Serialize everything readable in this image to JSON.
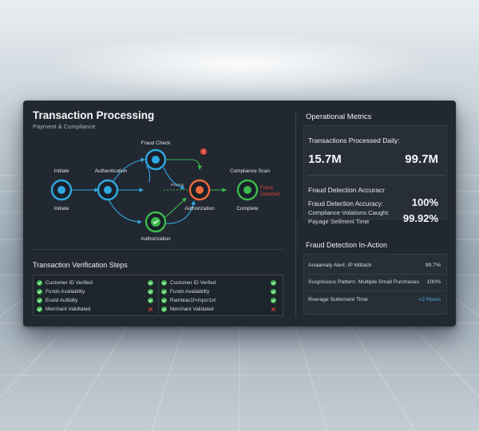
{
  "dashboard": {
    "title": "Transaction Processing",
    "subtitle": "Payment & Compliance"
  },
  "flow": {
    "nodes": {
      "initiate": {
        "label_top": "Initiate",
        "label_bottom": "Initiate"
      },
      "authentication": {
        "label": "Authentication"
      },
      "fraud_check": {
        "label": "Fraud Check"
      },
      "routing": {
        "label": "Routing"
      },
      "authorization_right": {
        "label": "Authorization"
      },
      "authorization_bottom": {
        "label": "Authorization"
      },
      "compliance": {
        "label_top": "Compliance Scan",
        "label_bottom": "Complete"
      }
    },
    "fraud_detected_label": "Fraud Detected",
    "colors": {
      "blue": "#2fa8e0",
      "orange": "#ee6a3c",
      "green": "#3cba4c",
      "red": "#e0473d"
    }
  },
  "verification": {
    "title": "Transaction Verification Steps",
    "columns": [
      {
        "rows": [
          {
            "label": "Customer ID Verified",
            "status": "ok"
          },
          {
            "label": "Funds Availability",
            "status": "ok"
          },
          {
            "label": "Eustd Autlidity",
            "status": "ok"
          },
          {
            "label": "Merchant Validtated",
            "status": "fail"
          }
        ]
      },
      {
        "rows": [
          {
            "label": "Customer ID Verfied",
            "status": "ok"
          },
          {
            "label": "Funds Availability",
            "status": "ok"
          },
          {
            "label": "Rambias1f×mpsr‡vt",
            "status": "ok"
          },
          {
            "label": "Merchant Validated",
            "status": "fail"
          }
        ]
      }
    ]
  },
  "metrics": {
    "title": "Operational Metrics",
    "processed_label": "Transactions Processed Daily:",
    "processed_value_1": "15.7M",
    "processed_value_2": "99.7M",
    "fraud_sub": "Fraud Detection Accuracr",
    "accuracy_label": "Fraud Detection Accuracy:",
    "violations_label": "Compliance Volations Caught:",
    "settlement_label": "Payage Setlment Time",
    "accuracy_value": "100%",
    "violations_value": "99.92%"
  },
  "fraud_action": {
    "title": "Fraud Detection In-Action",
    "rows": [
      {
        "label": "Anaamaly Alert: IP Mittach",
        "value": "99.7%"
      },
      {
        "label": "Suspricious Pattern: Multiple Small Purchases",
        "value": "100%"
      },
      {
        "label": "Rverage Sutlement Time",
        "value": "<2 Hours"
      }
    ]
  }
}
